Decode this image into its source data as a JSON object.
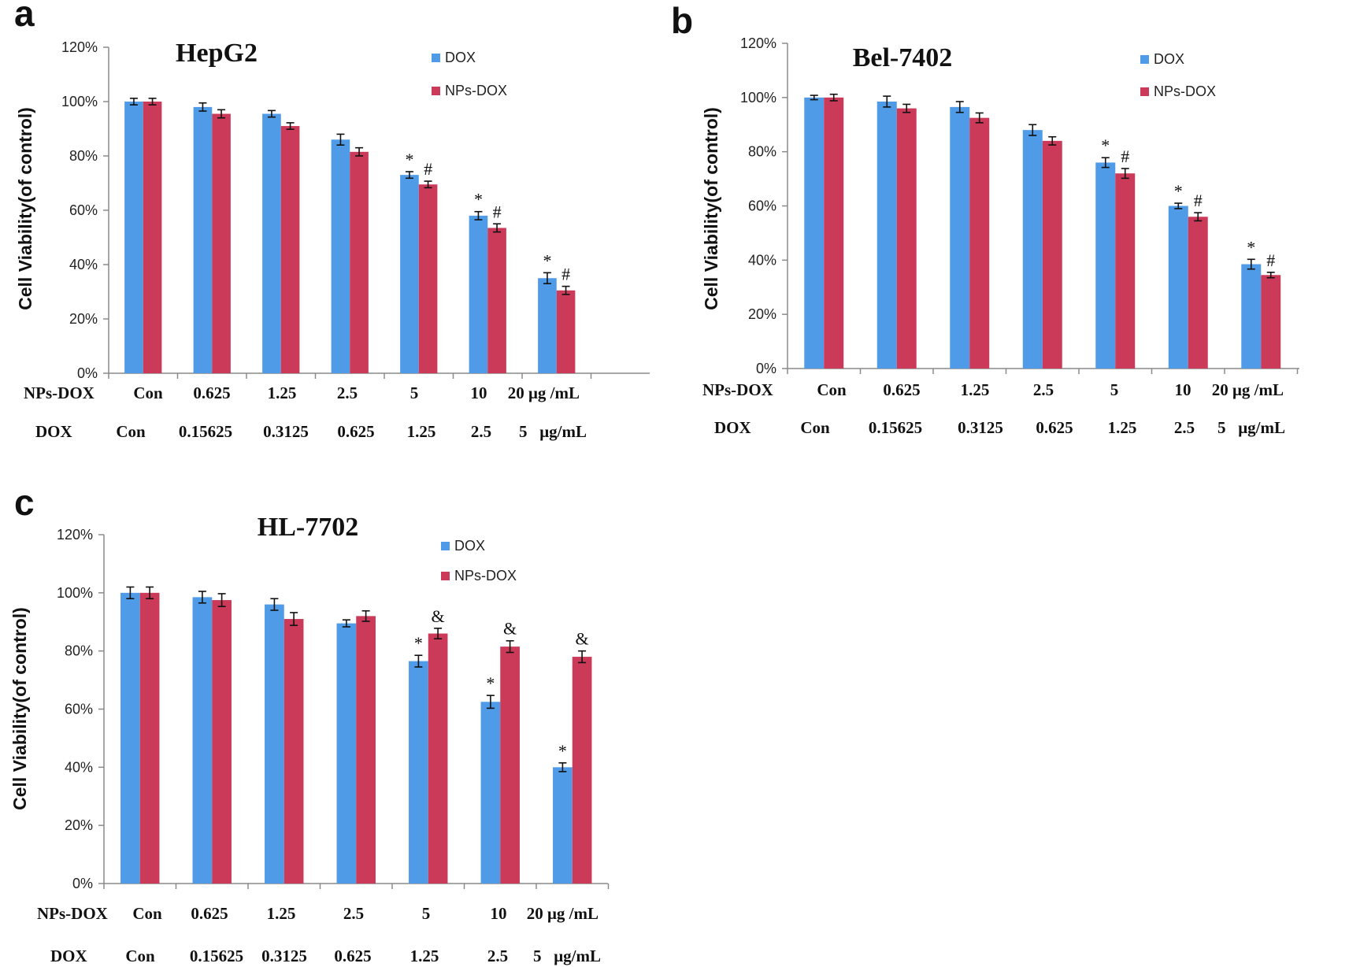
{
  "colors": {
    "dox": "#4f9be8",
    "nps_dox": "#cc3a5a",
    "axis": "#8a8a8a",
    "error": "#111111"
  },
  "chart_data": [
    {
      "panel": "a",
      "type": "bar",
      "title": "HepG2",
      "ylabel": "Cell Viability(of control)",
      "ylim": [
        0,
        120
      ],
      "yticks": [
        "0%",
        "20%",
        "40%",
        "60%",
        "80%",
        "100%",
        "120%"
      ],
      "legend": [
        "DOX",
        "NPs-DOX"
      ],
      "row1_label": "NPs-DOX",
      "row1": [
        "Con",
        "0.625",
        "1.25",
        "2.5",
        "5",
        "10",
        "20 μg /mL"
      ],
      "row2_label": "DOX",
      "row2": [
        "Con",
        "0.15625",
        "0.3125",
        "0.625",
        "1.25",
        "2.5",
        "5   μg/mL"
      ],
      "series": [
        {
          "name": "DOX",
          "values": [
            100,
            98,
            95.5,
            86,
            73,
            58,
            35
          ],
          "errors": [
            1.2,
            1.5,
            1.2,
            2,
            1.2,
            1.5,
            2
          ]
        },
        {
          "name": "NPs-DOX",
          "values": [
            100,
            95.5,
            91,
            81.5,
            69.5,
            53.5,
            30.5
          ],
          "errors": [
            1.2,
            1.5,
            1.2,
            1.5,
            1.2,
            1.5,
            1.5
          ]
        }
      ],
      "markers_dox": [
        "",
        "",
        "",
        "",
        "*",
        "*",
        "*"
      ],
      "markers_nps": [
        "",
        "",
        "",
        "",
        "#",
        "#",
        "#"
      ]
    },
    {
      "panel": "b",
      "type": "bar",
      "title": "Bel-7402",
      "ylabel": "Cell Viability(of control)",
      "ylim": [
        0,
        120
      ],
      "yticks": [
        "0%",
        "20%",
        "40%",
        "60%",
        "80%",
        "100%",
        "120%"
      ],
      "legend": [
        "DOX",
        "NPs-DOX"
      ],
      "row1_label": "NPs-DOX",
      "row1": [
        "Con",
        "0.625",
        "1.25",
        "2.5",
        "5",
        "10",
        "20 μg /mL"
      ],
      "row2_label": "DOX",
      "row2": [
        "Con",
        "0.15625",
        "0.3125",
        "0.625",
        "1.25",
        "2.5",
        "5   μg/mL"
      ],
      "series": [
        {
          "name": "DOX",
          "values": [
            100,
            98.5,
            96.5,
            88,
            76,
            60,
            38.5
          ],
          "errors": [
            0.8,
            2,
            2,
            2,
            1.8,
            1,
            1.8
          ]
        },
        {
          "name": "NPs-DOX",
          "values": [
            100,
            96,
            92.5,
            84,
            72,
            56,
            34.5
          ],
          "errors": [
            1.2,
            1.5,
            1.8,
            1.5,
            1.8,
            1.5,
            1
          ]
        }
      ],
      "markers_dox": [
        "",
        "",
        "",
        "",
        "*",
        "*",
        "*"
      ],
      "markers_nps": [
        "",
        "",
        "",
        "",
        "#",
        "#",
        "#"
      ]
    },
    {
      "panel": "c",
      "type": "bar",
      "title": "HL-7702",
      "ylabel": "Cell Viability(of control)",
      "ylim": [
        0,
        120
      ],
      "yticks": [
        "0%",
        "20%",
        "40%",
        "60%",
        "80%",
        "100%",
        "120%"
      ],
      "legend": [
        "DOX",
        "NPs-DOX"
      ],
      "row1_label": "NPs-DOX",
      "row1": [
        "Con",
        "0.625",
        "1.25",
        "2.5",
        "5",
        "10",
        "20 μg /mL"
      ],
      "row2_label": "DOX",
      "row2": [
        "Con",
        "0.15625",
        "0.3125",
        "0.625",
        "1.25",
        "2.5",
        "5   μg/mL"
      ],
      "series": [
        {
          "name": "DOX",
          "values": [
            100,
            98.5,
            96,
            89.5,
            76.5,
            62.5,
            40
          ],
          "errors": [
            2,
            2,
            2,
            1.2,
            2,
            2.2,
            1.5
          ]
        },
        {
          "name": "NPs-DOX",
          "values": [
            100,
            97.5,
            91,
            92,
            86,
            81.5,
            78
          ],
          "errors": [
            2,
            2.2,
            2.2,
            1.8,
            1.8,
            2,
            2
          ]
        }
      ],
      "markers_dox": [
        "",
        "",
        "",
        "",
        "*",
        "*",
        "*"
      ],
      "markers_nps": [
        "",
        "",
        "",
        "",
        "&",
        "&",
        "&"
      ]
    }
  ]
}
